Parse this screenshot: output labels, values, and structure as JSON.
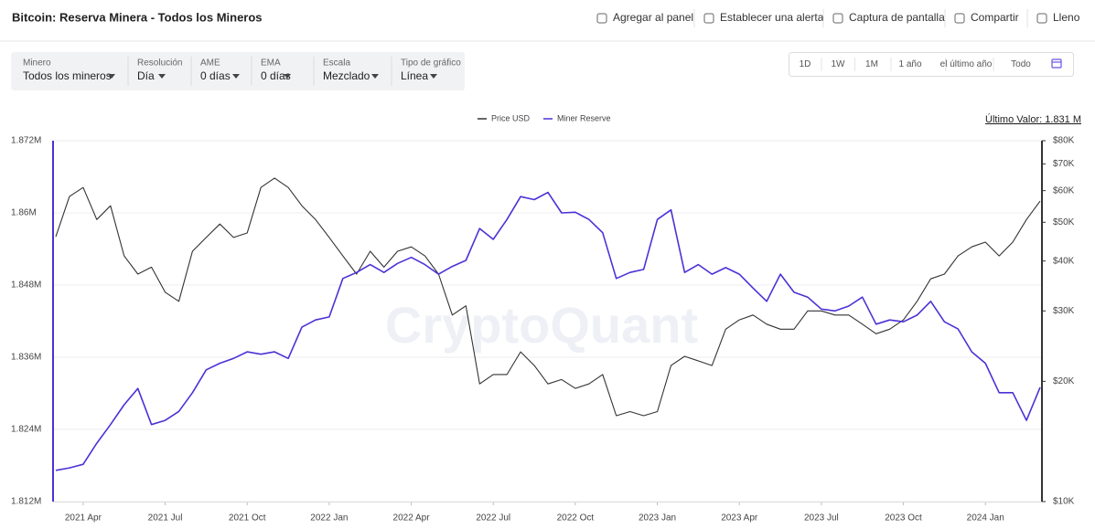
{
  "header": {
    "title": "Bitcoin: Reserva Minera - Todos los Mineros",
    "actions": [
      "Agregar al panel",
      "Establecer una alerta",
      "Captura de pantalla",
      "Compartir",
      "Lleno"
    ]
  },
  "filters": [
    {
      "label": "Minero",
      "value": "Todos los mineros"
    },
    {
      "label": "Resolución",
      "value": "Día"
    },
    {
      "label": "AME",
      "value": "0 días"
    },
    {
      "label": "EMA",
      "value": "0 días"
    },
    {
      "label": "Escala",
      "value": "Mezclado"
    },
    {
      "label": "Tipo de gráfico",
      "value": "Línea"
    }
  ],
  "ranges": [
    "1D",
    "1W",
    "1M",
    "1 año",
    "el último año",
    "Todo"
  ],
  "chart_data": {
    "type": "line",
    "watermark": "CryptoQuant",
    "annotation": "Último Valor: 1.831 M",
    "legend": "top",
    "categories": [
      null,
      null,
      "2021 Apr",
      null,
      null,
      null,
      null,
      null,
      "2021 Jul",
      null,
      null,
      null,
      null,
      null,
      "2021 Oct",
      null,
      null,
      null,
      null,
      null,
      "2022 Jan",
      null,
      null,
      null,
      null,
      null,
      "2022 Apr",
      null,
      null,
      null,
      null,
      null,
      "2022 Jul",
      null,
      null,
      null,
      null,
      null,
      "2022 Oct",
      null,
      null,
      null,
      null,
      null,
      "2023 Jan",
      null,
      null,
      null,
      null,
      null,
      "2023 Apr",
      null,
      null,
      null,
      null,
      null,
      "2023 Jul",
      null,
      null,
      null,
      null,
      null,
      "2023 Oct",
      null,
      null,
      null,
      null,
      null,
      "2024 Jan",
      null,
      null,
      null,
      null
    ],
    "series": [
      {
        "name": "Price USD",
        "color": "#333333",
        "axis": "y2",
        "values": [
          46000,
          58000,
          61100,
          50800,
          55000,
          41200,
          37100,
          38600,
          33400,
          31700,
          42300,
          45800,
          49500,
          45800,
          47000,
          61100,
          64500,
          61100,
          55000,
          50800,
          45800,
          41200,
          37100,
          42300,
          38600,
          42300,
          43400,
          41200,
          37100,
          29300,
          30900,
          19700,
          20800,
          20800,
          23700,
          21900,
          19700,
          20200,
          19200,
          19700,
          20800,
          16400,
          16800,
          16400,
          16800,
          21900,
          23100,
          22500,
          21900,
          27000,
          28500,
          29300,
          27800,
          27000,
          27000,
          30000,
          30000,
          29300,
          29300,
          27800,
          26300,
          27000,
          28500,
          31700,
          36100,
          37100,
          41200,
          43400,
          44600,
          41200,
          44600,
          50800,
          56500
        ]
      },
      {
        "name": "Miner Reserve",
        "color": "#4b32d6",
        "values": [
          1.8172,
          1.8176,
          1.8182,
          1.8217,
          1.8248,
          1.8281,
          1.8308,
          1.8248,
          1.8255,
          1.827,
          1.8301,
          1.8339,
          1.835,
          1.8358,
          1.8369,
          1.8365,
          1.8369,
          1.8358,
          1.841,
          1.8422,
          1.8427,
          1.8491,
          1.8501,
          1.8514,
          1.8501,
          1.8516,
          1.8526,
          1.8514,
          1.8498,
          1.8511,
          1.8521,
          1.8574,
          1.8556,
          1.8589,
          1.8627,
          1.8622,
          1.8634,
          1.86,
          1.8601,
          1.8589,
          1.8567,
          1.8491,
          1.8501,
          1.8506,
          1.8589,
          1.8605,
          1.8501,
          1.8514,
          1.8498,
          1.8509,
          1.8498,
          1.8475,
          1.8453,
          1.8498,
          1.8468,
          1.846,
          1.844,
          1.8437,
          1.8445,
          1.846,
          1.8415,
          1.8422,
          1.8419,
          1.843,
          1.8453,
          1.8419,
          1.8407,
          1.8369,
          1.835,
          1.8301,
          1.8301,
          1.8255,
          1.831
        ]
      }
    ],
    "ylim": [
      1.812,
      1.872
    ],
    "yticks": [
      {
        "value": 1.812,
        "label": "1.812M"
      },
      {
        "value": 1.824,
        "label": "1.824M"
      },
      {
        "value": 1.836,
        "label": "1.836M"
      },
      {
        "value": 1.848,
        "label": "1.848M"
      },
      {
        "value": 1.86,
        "label": "1.86M"
      },
      {
        "value": 1.872,
        "label": "1.872M"
      }
    ],
    "y2lim": [
      10000,
      80000
    ],
    "y2scale": "log",
    "y2ticks": [
      {
        "value": 10000,
        "label": "$10K"
      },
      {
        "value": 20000,
        "label": "$20K"
      },
      {
        "value": 30000,
        "label": "$30K"
      },
      {
        "value": 40000,
        "label": "$40K"
      },
      {
        "value": 50000,
        "label": "$50K"
      },
      {
        "value": 60000,
        "label": "$60K"
      },
      {
        "value": 70000,
        "label": "$70K"
      },
      {
        "value": 80000,
        "label": "$80K"
      }
    ],
    "grid": true
  }
}
